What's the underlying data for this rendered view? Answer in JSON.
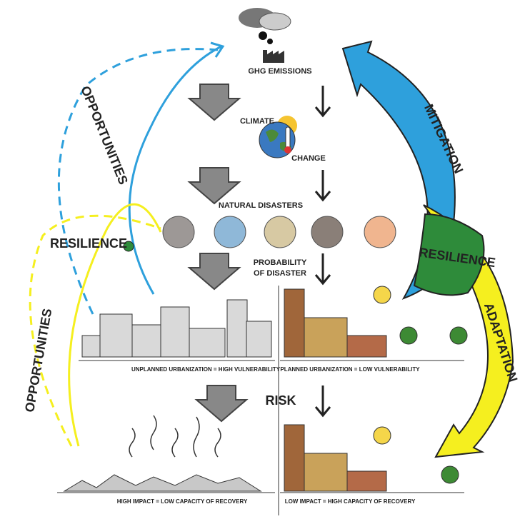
{
  "emissions": "GHG EMISSIONS",
  "climate_change": [
    "CLIMATE",
    "CHANGE"
  ],
  "natural_disasters": "NATURAL DISASTERS",
  "probability": [
    "PROBABILITY",
    "OF DISASTER"
  ],
  "risk": "RISK",
  "vulnerability": [
    "UNPLANNED URBANIZATION = HIGH VULNERABILITY",
    "PLANNED URBANIZATION = LOW VULNERABILITY"
  ],
  "recovery": [
    "HIGH IMPACT = LOW CAPACITY OF RECOVERY",
    "LOW IMPACT = HIGH CAPACITY OF RECOVERY"
  ],
  "right_arrows": [
    "MITIGATION",
    "RESILIENCE",
    "ADAPTATION"
  ],
  "left_arrows": {
    "opportunities_top": "OPPORTUNITIES",
    "resilience": "RESILIENCE",
    "opportunities_bottom": "OPPORTUNITIES"
  }
}
